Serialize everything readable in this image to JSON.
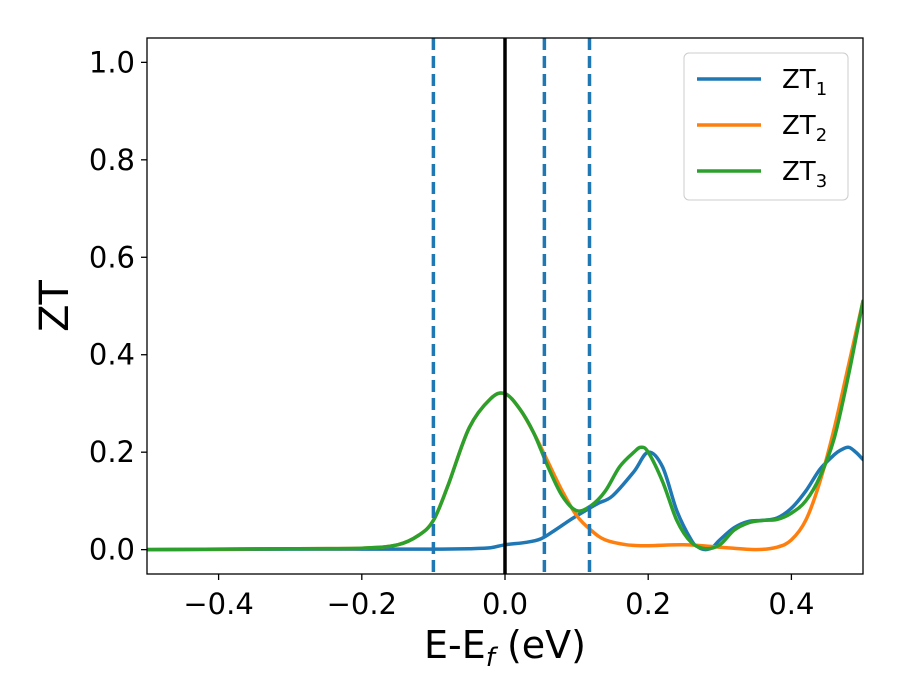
{
  "chart_data": {
    "type": "line",
    "title": "",
    "xlabel": "E-E",
    "xlabel_sub": "f",
    "xlabel_unit": " (eV)",
    "ylabel": "ZT",
    "xlim": [
      -0.5,
      0.5
    ],
    "ylim": [
      -0.05,
      1.05
    ],
    "xticks": [
      -0.4,
      -0.2,
      0.0,
      0.2,
      0.4
    ],
    "xtick_labels": [
      "−0.4",
      "−0.2",
      "0.0",
      "0.2",
      "0.4"
    ],
    "yticks": [
      0.0,
      0.2,
      0.4,
      0.6,
      0.8,
      1.0
    ],
    "ytick_labels": [
      "0.0",
      "0.2",
      "0.4",
      "0.6",
      "0.8",
      "1.0"
    ],
    "grid": false,
    "legend_position": "top-right",
    "vlines": [
      {
        "x": 0.0,
        "color": "#000000",
        "style": "solid"
      },
      {
        "x": -0.1,
        "color": "#1f77b4",
        "style": "dashed"
      },
      {
        "x": 0.055,
        "color": "#1f77b4",
        "style": "dashed"
      },
      {
        "x": 0.118,
        "color": "#1f77b4",
        "style": "dashed"
      }
    ],
    "series": [
      {
        "name": "ZT",
        "subscript": "1",
        "color": "#1f77b4",
        "x": [
          -0.5,
          -0.3,
          -0.2,
          -0.15,
          -0.1,
          -0.05,
          -0.02,
          0.0,
          0.03,
          0.05,
          0.07,
          0.09,
          0.11,
          0.13,
          0.15,
          0.18,
          0.2,
          0.22,
          0.24,
          0.26,
          0.27,
          0.28,
          0.29,
          0.3,
          0.32,
          0.34,
          0.36,
          0.38,
          0.4,
          0.42,
          0.44,
          0.46,
          0.47,
          0.48,
          0.49,
          0.5
        ],
        "y": [
          0.0,
          0.001,
          0.001,
          0.001,
          0.001,
          0.002,
          0.004,
          0.01,
          0.015,
          0.022,
          0.04,
          0.06,
          0.078,
          0.095,
          0.11,
          0.16,
          0.2,
          0.17,
          0.08,
          0.02,
          0.005,
          0.0,
          0.005,
          0.02,
          0.045,
          0.058,
          0.06,
          0.065,
          0.085,
          0.12,
          0.165,
          0.195,
          0.205,
          0.21,
          0.2,
          0.185
        ]
      },
      {
        "name": "ZT",
        "subscript": "2",
        "color": "#ff7f0e",
        "x": [
          -0.5,
          -0.3,
          -0.2,
          -0.15,
          -0.12,
          -0.1,
          -0.08,
          -0.05,
          -0.02,
          0.0,
          0.02,
          0.04,
          0.06,
          0.08,
          0.1,
          0.12,
          0.14,
          0.17,
          0.2,
          0.25,
          0.3,
          0.35,
          0.38,
          0.4,
          0.42,
          0.44,
          0.46,
          0.48,
          0.5
        ],
        "y": [
          0.0,
          0.002,
          0.003,
          0.01,
          0.03,
          0.06,
          0.13,
          0.25,
          0.31,
          0.32,
          0.29,
          0.24,
          0.18,
          0.12,
          0.07,
          0.04,
          0.02,
          0.01,
          0.008,
          0.01,
          0.005,
          0.0,
          0.005,
          0.02,
          0.06,
          0.14,
          0.25,
          0.38,
          0.51
        ]
      },
      {
        "name": "ZT",
        "subscript": "3",
        "color": "#2ca02c",
        "x": [
          -0.5,
          -0.3,
          -0.2,
          -0.15,
          -0.12,
          -0.1,
          -0.08,
          -0.05,
          -0.02,
          0.0,
          0.02,
          0.04,
          0.06,
          0.08,
          0.1,
          0.12,
          0.14,
          0.16,
          0.18,
          0.19,
          0.2,
          0.22,
          0.24,
          0.26,
          0.28,
          0.3,
          0.32,
          0.34,
          0.36,
          0.38,
          0.4,
          0.42,
          0.44,
          0.46,
          0.48,
          0.5
        ],
        "y": [
          0.0,
          0.002,
          0.003,
          0.01,
          0.03,
          0.06,
          0.13,
          0.25,
          0.31,
          0.32,
          0.29,
          0.24,
          0.17,
          0.11,
          0.08,
          0.09,
          0.12,
          0.17,
          0.2,
          0.21,
          0.2,
          0.14,
          0.06,
          0.015,
          0.002,
          0.01,
          0.04,
          0.055,
          0.06,
          0.062,
          0.075,
          0.1,
          0.15,
          0.23,
          0.36,
          0.51
        ]
      }
    ]
  }
}
